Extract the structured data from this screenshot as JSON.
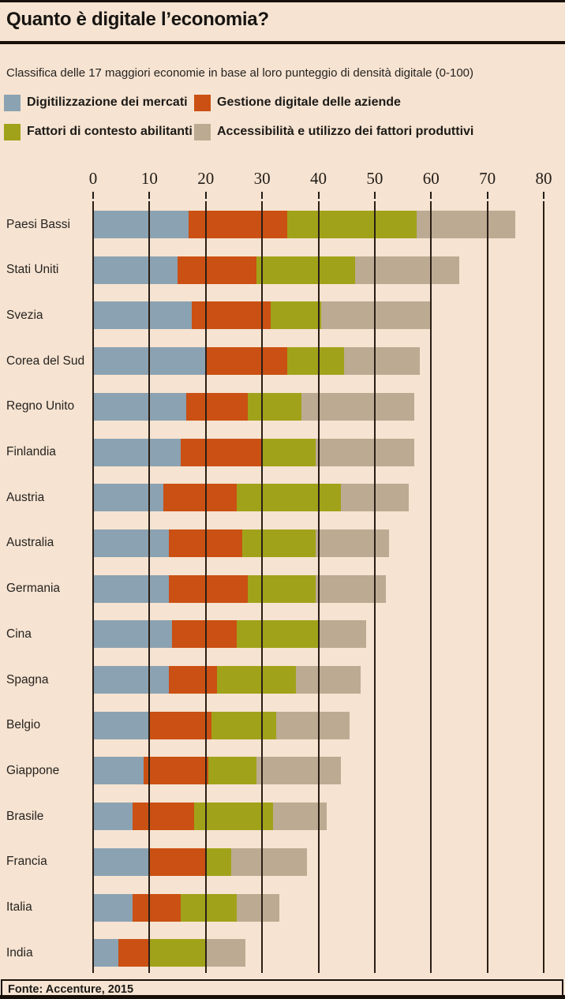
{
  "header": {
    "title": "Quanto è digitale l’economia?",
    "subtitle": "Classifica delle 17 maggiori economie in base al loro punteggio di densità digitale (0-100)"
  },
  "legend": [
    {
      "label": "Digitilizzazione dei mercati",
      "color": "#8ba2b2"
    },
    {
      "label": "Gestione digitale delle aziende",
      "color": "#ca5013"
    },
    {
      "label": "Fattori di contesto abilitanti",
      "color": "#a0a319"
    },
    {
      "label": "Accessibilità e utilizzo dei fattori produttivi",
      "color": "#bcaa92"
    }
  ],
  "chart_data": {
    "type": "bar",
    "orientation": "horizontal",
    "stacked": true,
    "title": "Quanto è digitale l’economia?",
    "subtitle": "Classifica delle 17 maggiori economie in base al loro punteggio di densità digitale (0-100)",
    "xlim": [
      0,
      80
    ],
    "x_ticks": [
      0,
      10,
      20,
      30,
      40,
      50,
      60,
      70,
      80
    ],
    "grid": true,
    "legend_position": "top",
    "categories": [
      "Paesi Bassi",
      "Stati Uniti",
      "Svezia",
      "Corea del Sud",
      "Regno Unito",
      "Finlandia",
      "Austria",
      "Australia",
      "Germania",
      "Cina",
      "Spagna",
      "Belgio",
      "Giappone",
      "Brasile",
      "Francia",
      "Italia",
      "India"
    ],
    "series": [
      {
        "name": "Digitilizzazione dei mercati",
        "color": "#8ba2b2",
        "values": [
          17,
          15,
          17.5,
          20,
          16.5,
          15.5,
          12.5,
          13.5,
          13.5,
          14,
          13.5,
          10,
          9,
          7,
          10,
          7,
          4.5
        ]
      },
      {
        "name": "Gestione digitale delle aziende",
        "color": "#ca5013",
        "values": [
          17.5,
          14,
          14,
          14.5,
          11,
          14.5,
          13,
          13,
          14,
          11.5,
          8.5,
          11,
          11.5,
          11,
          10,
          8.5,
          5.5
        ]
      },
      {
        "name": "Fattori di contesto abilitanti",
        "color": "#a0a319",
        "values": [
          23,
          17.5,
          9,
          10,
          9.5,
          9.5,
          18.5,
          13,
          12,
          14.5,
          14,
          11.5,
          8.5,
          14,
          4.5,
          10,
          10
        ]
      },
      {
        "name": "Accessibilità e utilizzo dei fattori produttivi",
        "color": "#bcaa92",
        "values": [
          17.5,
          18.5,
          19.5,
          13.5,
          20,
          17.5,
          12,
          13,
          12.5,
          8.5,
          11.5,
          13,
          15,
          9.5,
          13.5,
          7.5,
          7
        ]
      }
    ],
    "totals": [
      75,
      65,
      60,
      58,
      57,
      57,
      56,
      52.5,
      52,
      48.5,
      47.5,
      45.5,
      44,
      41.5,
      38,
      33,
      27
    ]
  },
  "footer": {
    "source": "Fonte: Accenture, 2015"
  },
  "colors": {
    "background": "#f6e3d1",
    "rule": "#181008",
    "gridline": "#2a1f16"
  }
}
